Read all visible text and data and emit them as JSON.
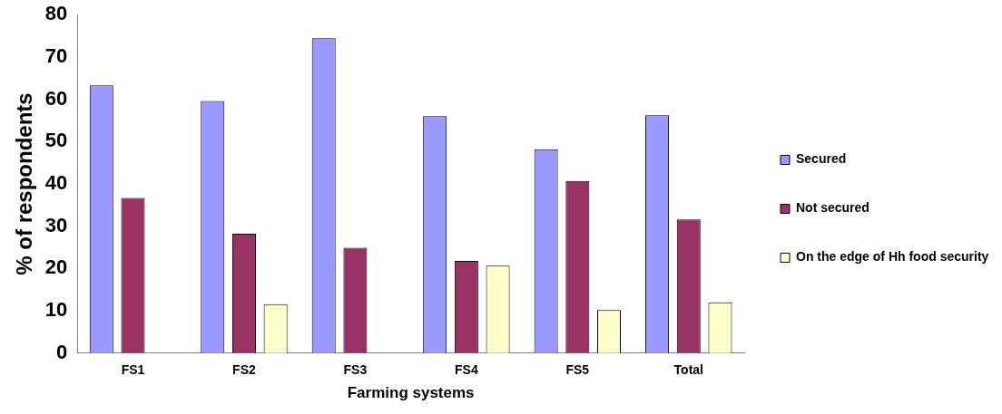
{
  "chart_data": {
    "type": "bar",
    "xlabel": "Farming systems",
    "ylabel": "% of respondents",
    "categories": [
      "FS1",
      "FS2",
      "FS3",
      "FS4",
      "FS5",
      "Total"
    ],
    "series": [
      {
        "name": "Secured",
        "color": "#9999ff",
        "values": [
          63.3,
          59.6,
          74.4,
          56,
          48.2,
          56.2
        ]
      },
      {
        "name": "Not secured",
        "color": "#993366",
        "values": [
          36.7,
          28.2,
          24.9,
          21.8,
          40.7,
          31.6
        ]
      },
      {
        "name": "On the edge of Hh food security",
        "color": "#ffffcc",
        "values": [
          0,
          11.6,
          0,
          20.7,
          10.2,
          12
        ]
      }
    ],
    "ylim": [
      0,
      80
    ],
    "yticks": [
      0,
      10,
      20,
      30,
      40,
      50,
      60,
      70,
      80
    ],
    "grid": false,
    "legend": "right"
  }
}
